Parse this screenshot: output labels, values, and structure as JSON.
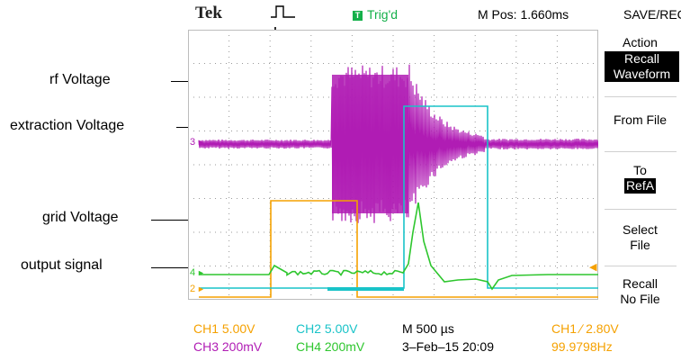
{
  "annotations": [
    {
      "id": "rf",
      "label": "rf Voltage"
    },
    {
      "id": "extraction",
      "label": "extraction Voltage"
    },
    {
      "id": "grid",
      "label": "grid Voltage"
    },
    {
      "id": "output",
      "label": "output signal"
    }
  ],
  "header": {
    "brand": "Tek",
    "trigger_status": "Trig'd",
    "trigger_box": "T",
    "position": "M Pos: 1.660ms",
    "menu_title": "SAVE/REC"
  },
  "side_menu": {
    "action_label": "Action",
    "action_value_line1": "Recall",
    "action_value_line2": "Waveform",
    "from_file": "From File",
    "to_label": "To",
    "to_value": "RefA",
    "select_line1": "Select",
    "select_line2": "File",
    "recall_line1": "Recall",
    "recall_line2": "No File"
  },
  "channel_markers": {
    "ch3": "3",
    "ch4": "4",
    "ch2": "2"
  },
  "status_bar": {
    "ch1": "CH1  5.00V",
    "ch2": "CH2  5.00V",
    "timebase": "M 500 µs",
    "trigger": "CH1  ∕  2.80V",
    "ch3": "CH3  200mV",
    "ch4": "CH4  200mV",
    "date": "3–Feb–15 20:09",
    "frequency": "99.9798Hz"
  },
  "colors": {
    "ch1": "#f5a100",
    "ch2": "#19c3c8",
    "ch3": "#b01cb4",
    "ch4": "#2ec62e",
    "trigger_green": "#14b04a"
  }
}
